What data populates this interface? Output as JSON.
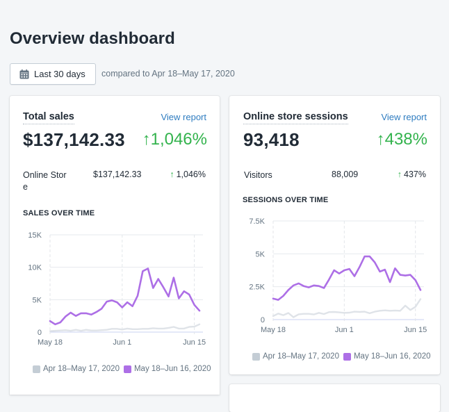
{
  "page": {
    "title": "Overview dashboard",
    "date_range_button": "Last 30 days",
    "date_range_icon": "calendar-icon",
    "compare_text": "compared to Apr 18–May 17, 2020"
  },
  "colors": {
    "current_series": "#ad6fe6",
    "previous_series": "#dfe3e8",
    "positive": "#33b34d",
    "link": "#2e7cc0"
  },
  "cards": {
    "sales": {
      "title": "Total sales",
      "link": "View report",
      "value": "$137,142.33",
      "change_arrow": "↑",
      "change": "1,046%",
      "breakdown": {
        "label_line1": "Online Stor",
        "label_line2": "e",
        "value": "$137,142.33",
        "arrow": "↑",
        "change": "1,046%"
      },
      "chart_title": "SALES OVER TIME"
    },
    "sessions": {
      "title": "Online store sessions",
      "link": "View report",
      "value": "93,418",
      "change_arrow": "↑",
      "change": "438%",
      "breakdown": {
        "label": "Visitors",
        "value": "88,009",
        "arrow": "↑",
        "change": "437%"
      },
      "chart_title": "SESSIONS OVER TIME"
    }
  },
  "chart_data": [
    {
      "type": "line",
      "title": "SALES OVER TIME",
      "xlabel": "",
      "ylabel": "",
      "x_ticks": [
        "May 18",
        "Jun 1",
        "Jun 15"
      ],
      "x_tick_index": [
        0,
        14,
        28
      ],
      "y_ticks": [
        "0",
        "5K",
        "10K",
        "15K"
      ],
      "y_tick_values": [
        0,
        5000,
        10000,
        15000
      ],
      "ylim": [
        0,
        15000
      ],
      "grid": true,
      "legend_position": "bottom",
      "series": [
        {
          "name": "Apr 18–May 17, 2020",
          "color": "#dfe3e8",
          "values": [
            150,
            200,
            250,
            300,
            200,
            350,
            200,
            350,
            250,
            250,
            300,
            350,
            500,
            500,
            400,
            550,
            450,
            450,
            500,
            500,
            600,
            550,
            550,
            650,
            800,
            550,
            550,
            800,
            850,
            1200
          ]
        },
        {
          "name": "May 18–Jun 16, 2020",
          "color": "#ad6fe6",
          "values": [
            1700,
            1200,
            1500,
            2400,
            3000,
            2500,
            2900,
            2900,
            2700,
            3100,
            3600,
            4700,
            4900,
            4600,
            3800,
            4600,
            4000,
            5600,
            9400,
            9800,
            6800,
            8200,
            6900,
            5500,
            8400,
            5200,
            6300,
            5800,
            4200,
            3300
          ]
        }
      ]
    },
    {
      "type": "line",
      "title": "SESSIONS OVER TIME",
      "xlabel": "",
      "ylabel": "",
      "x_ticks": [
        "May 18",
        "Jun 1",
        "Jun 15"
      ],
      "x_tick_index": [
        0,
        14,
        28
      ],
      "y_ticks": [
        "0",
        "2.5K",
        "5K",
        "7.5K"
      ],
      "y_tick_values": [
        0,
        2500,
        5000,
        7500
      ],
      "ylim": [
        0,
        7500
      ],
      "grid": true,
      "legend_position": "bottom",
      "series": [
        {
          "name": "Apr 18–May 17, 2020",
          "color": "#dfe3e8",
          "values": [
            270,
            460,
            340,
            500,
            180,
            400,
            440,
            440,
            390,
            510,
            420,
            570,
            580,
            550,
            510,
            530,
            600,
            580,
            600,
            480,
            600,
            670,
            700,
            670,
            690,
            670,
            1060,
            730,
            970,
            1560
          ]
        },
        {
          "name": "May 18–Jun 16, 2020",
          "color": "#ad6fe6",
          "values": [
            1600,
            1500,
            1800,
            2250,
            2600,
            2750,
            2550,
            2450,
            2600,
            2550,
            2400,
            3050,
            3750,
            3500,
            3750,
            3850,
            3300,
            4000,
            4800,
            4800,
            4350,
            3650,
            3800,
            2850,
            3900,
            3400,
            3350,
            3400,
            3000,
            2250
          ]
        }
      ]
    }
  ]
}
